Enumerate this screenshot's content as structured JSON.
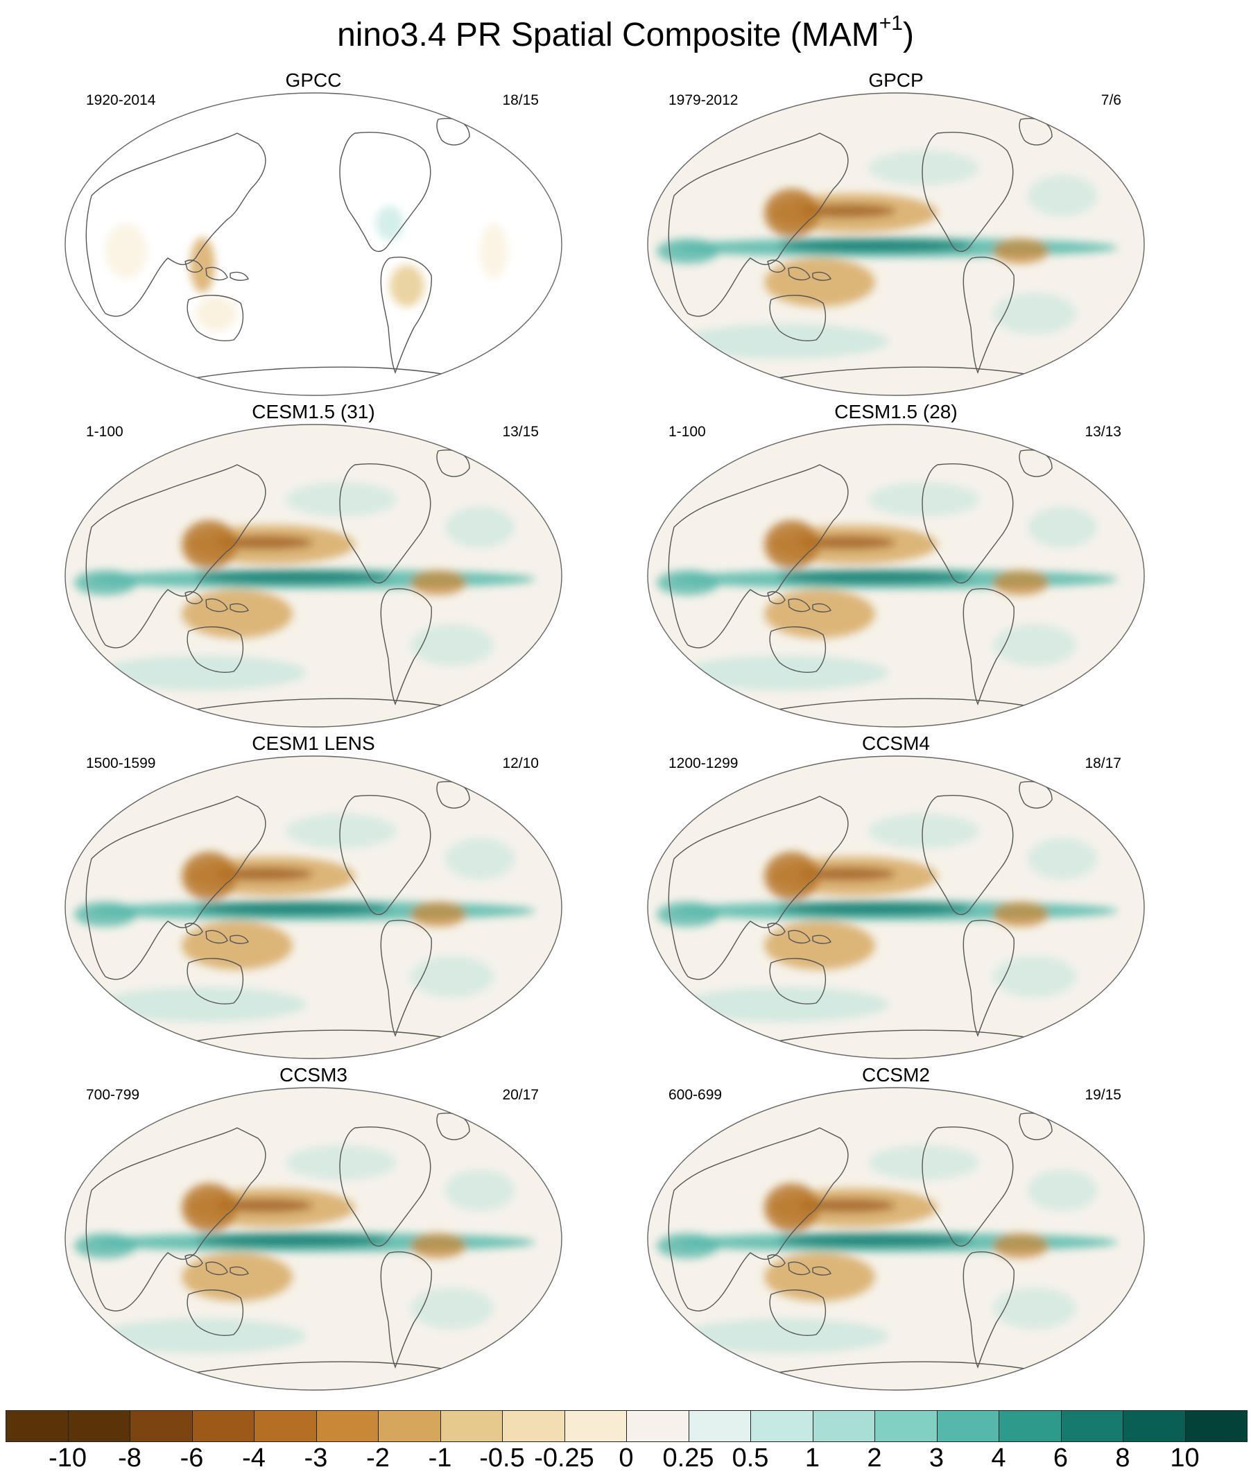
{
  "figure": {
    "title_main": "nino3.4 PR Spatial Composite (MAM",
    "title_sup": "+1",
    "title_end": ")"
  },
  "panels": [
    {
      "title": "GPCC",
      "period": "1920-2014",
      "ratio": "18/15",
      "land_only": true
    },
    {
      "title": "GPCP",
      "period": "1979-2012",
      "ratio": "7/6",
      "land_only": false
    },
    {
      "title": "CESM1.5 (31)",
      "period": "1-100",
      "ratio": "13/15",
      "land_only": false
    },
    {
      "title": "CESM1.5 (28)",
      "period": "1-100",
      "ratio": "13/13",
      "land_only": false
    },
    {
      "title": "CESM1 LENS",
      "period": "1500-1599",
      "ratio": "12/10",
      "land_only": false
    },
    {
      "title": "CCSM4",
      "period": "1200-1299",
      "ratio": "18/17",
      "land_only": false
    },
    {
      "title": "CCSM3",
      "period": "700-799",
      "ratio": "20/17",
      "land_only": false
    },
    {
      "title": "CCSM2",
      "period": "600-699",
      "ratio": "19/15",
      "land_only": false
    }
  ],
  "colorbar": {
    "colors": [
      "#5a3409",
      "#7a4510",
      "#9b5a18",
      "#b46f22",
      "#c98838",
      "#d6a65c",
      "#e6c98c",
      "#f1deb2",
      "#f8ecd2",
      "#f6f2ea",
      "#e3f2ef",
      "#c7e9e3",
      "#a9ded6",
      "#82cfc3",
      "#55b8aa",
      "#2e9a8c",
      "#147b6e",
      "#0a5f55",
      "#034239"
    ],
    "labels": [
      "-10",
      "-8",
      "-6",
      "-4",
      "-3",
      "-2",
      "-1",
      "-0.5",
      "-0.25",
      "0",
      "0.25",
      "0.5",
      "1",
      "2",
      "3",
      "4",
      "6",
      "8",
      "10"
    ]
  }
}
